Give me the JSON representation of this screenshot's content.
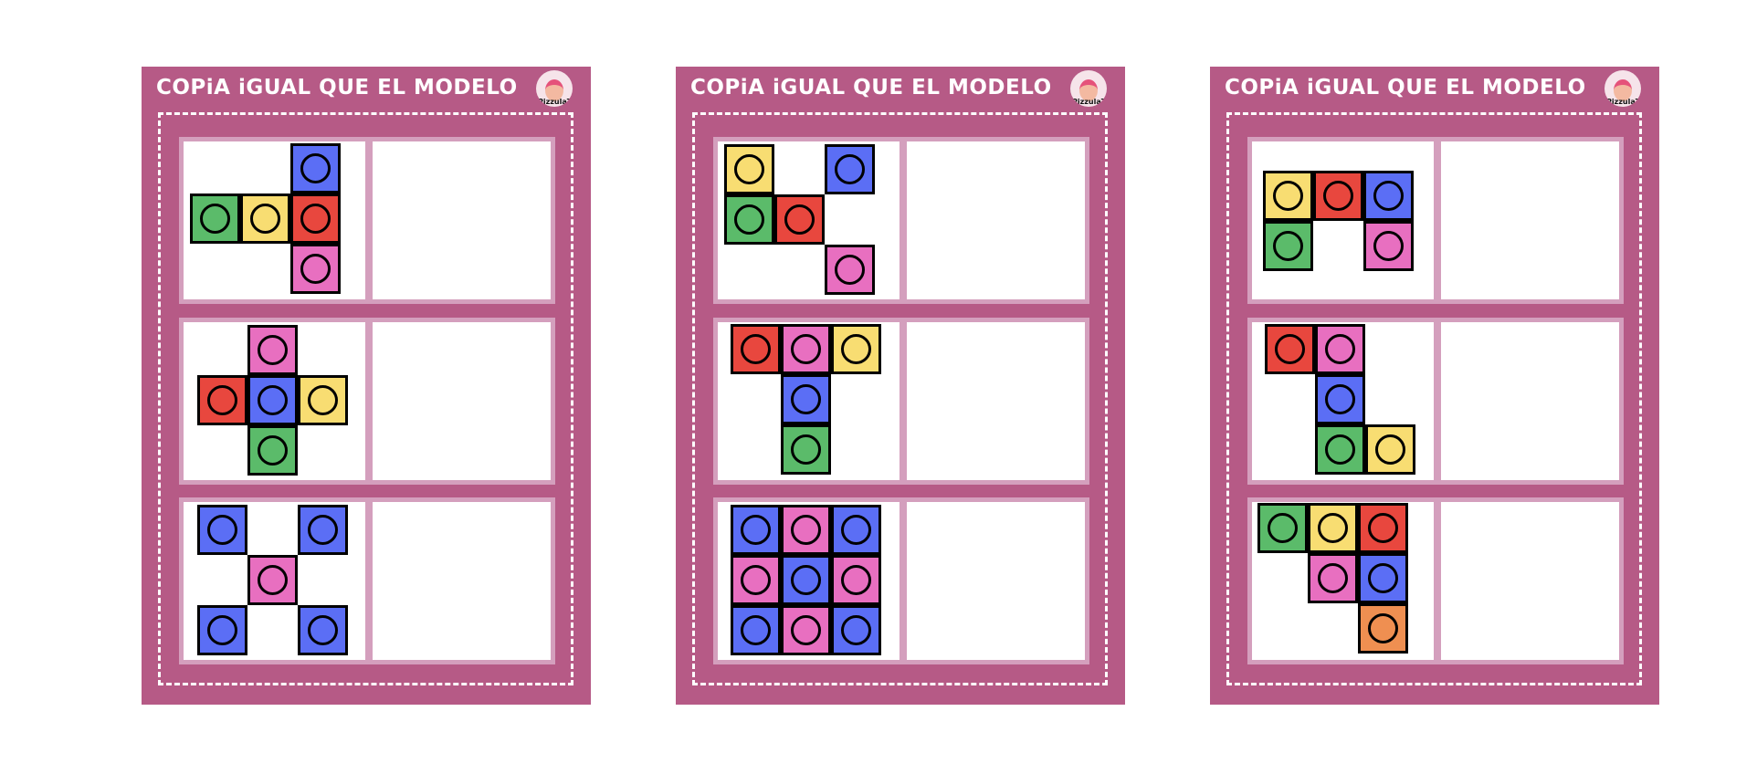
{
  "colors": {
    "card": "#b65a86",
    "panel_border": "#d49fbd",
    "blue": "#5b6ef5",
    "green": "#5bbb6a",
    "yellow": "#f8dd72",
    "red": "#e8473e",
    "pink": "#e86fc0",
    "orange": "#ef8f51"
  },
  "cards": [
    {
      "title": "COPiA  iGUAL QUE EL MODELO",
      "logo_text": "PizzulaTEA",
      "puzzles": [
        {
          "tiles": [
            [
              2,
              0,
              "blue"
            ],
            [
              0,
              1,
              "green"
            ],
            [
              1,
              1,
              "yellow"
            ],
            [
              2,
              1,
              "red"
            ],
            [
              2,
              2,
              "pink"
            ]
          ]
        },
        {
          "tiles": [
            [
              1,
              0,
              "pink"
            ],
            [
              0,
              1,
              "red"
            ],
            [
              1,
              1,
              "blue"
            ],
            [
              2,
              1,
              "yellow"
            ],
            [
              1,
              2,
              "green"
            ]
          ]
        },
        {
          "tiles": [
            [
              0,
              0,
              "blue"
            ],
            [
              2,
              0,
              "blue"
            ],
            [
              1,
              1,
              "pink"
            ],
            [
              0,
              2,
              "blue"
            ],
            [
              2,
              2,
              "blue"
            ]
          ]
        }
      ]
    },
    {
      "title": "COPiA  iGUAL QUE EL MODELO",
      "logo_text": "PizzulaTEA",
      "puzzles": [
        {
          "tiles": [
            [
              0,
              0,
              "yellow"
            ],
            [
              2,
              0,
              "blue"
            ],
            [
              0,
              1,
              "green"
            ],
            [
              1,
              1,
              "red"
            ],
            [
              2,
              2,
              "pink"
            ]
          ]
        },
        {
          "tiles": [
            [
              0,
              0,
              "red"
            ],
            [
              1,
              0,
              "pink"
            ],
            [
              2,
              0,
              "yellow"
            ],
            [
              1,
              1,
              "blue"
            ],
            [
              1,
              2,
              "green"
            ]
          ]
        },
        {
          "tiles": [
            [
              0,
              0,
              "blue"
            ],
            [
              1,
              0,
              "pink"
            ],
            [
              2,
              0,
              "blue"
            ],
            [
              0,
              1,
              "pink"
            ],
            [
              1,
              1,
              "blue"
            ],
            [
              2,
              1,
              "pink"
            ],
            [
              0,
              2,
              "blue"
            ],
            [
              1,
              2,
              "pink"
            ],
            [
              2,
              2,
              "blue"
            ]
          ]
        }
      ]
    },
    {
      "title": "COPiA  iGUAL QUE EL MODELO",
      "logo_text": "PizzulaTEA",
      "puzzles": [
        {
          "tiles": [
            [
              0,
              0,
              "yellow"
            ],
            [
              1,
              0,
              "red"
            ],
            [
              2,
              0,
              "blue"
            ],
            [
              0,
              1,
              "green"
            ],
            [
              2,
              1,
              "pink"
            ]
          ]
        },
        {
          "tiles": [
            [
              0,
              0,
              "red"
            ],
            [
              1,
              0,
              "pink"
            ],
            [
              1,
              1,
              "blue"
            ],
            [
              1,
              2,
              "green"
            ],
            [
              2,
              2,
              "yellow"
            ]
          ]
        },
        {
          "tiles": [
            [
              0,
              0,
              "green"
            ],
            [
              1,
              0,
              "yellow"
            ],
            [
              2,
              0,
              "red"
            ],
            [
              1,
              1,
              "pink"
            ],
            [
              2,
              1,
              "blue"
            ],
            [
              2,
              2,
              "orange"
            ]
          ]
        }
      ]
    }
  ]
}
